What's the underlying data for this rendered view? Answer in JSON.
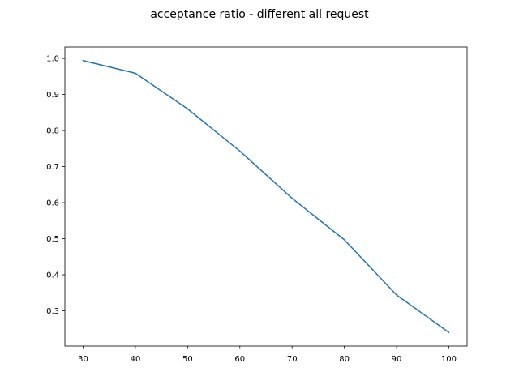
{
  "chart_data": {
    "type": "line",
    "title": "acceptance ratio - different all request",
    "xlabel": "",
    "ylabel": "",
    "x": [
      30,
      40,
      50,
      60,
      70,
      80,
      90,
      100
    ],
    "series": [
      {
        "values": [
          0.994,
          0.959,
          0.86,
          0.743,
          0.612,
          0.497,
          0.344,
          0.24
        ],
        "color": "#1f77b4"
      }
    ],
    "xlim": [
      26.5,
      103.5
    ],
    "ylim": [
      0.2023,
      1.0317
    ],
    "xticks": [
      30,
      40,
      50,
      60,
      70,
      80,
      90,
      100
    ],
    "yticks": [
      0.3,
      0.4,
      0.5,
      0.6,
      0.7,
      0.8,
      0.9,
      1.0
    ],
    "xtick_labels": [
      "30",
      "40",
      "50",
      "60",
      "70",
      "80",
      "90",
      "100"
    ],
    "ytick_labels": [
      "0.3",
      "0.4",
      "0.5",
      "0.6",
      "0.7",
      "0.8",
      "0.9",
      "1.0"
    ],
    "grid": false,
    "legend": "none"
  }
}
